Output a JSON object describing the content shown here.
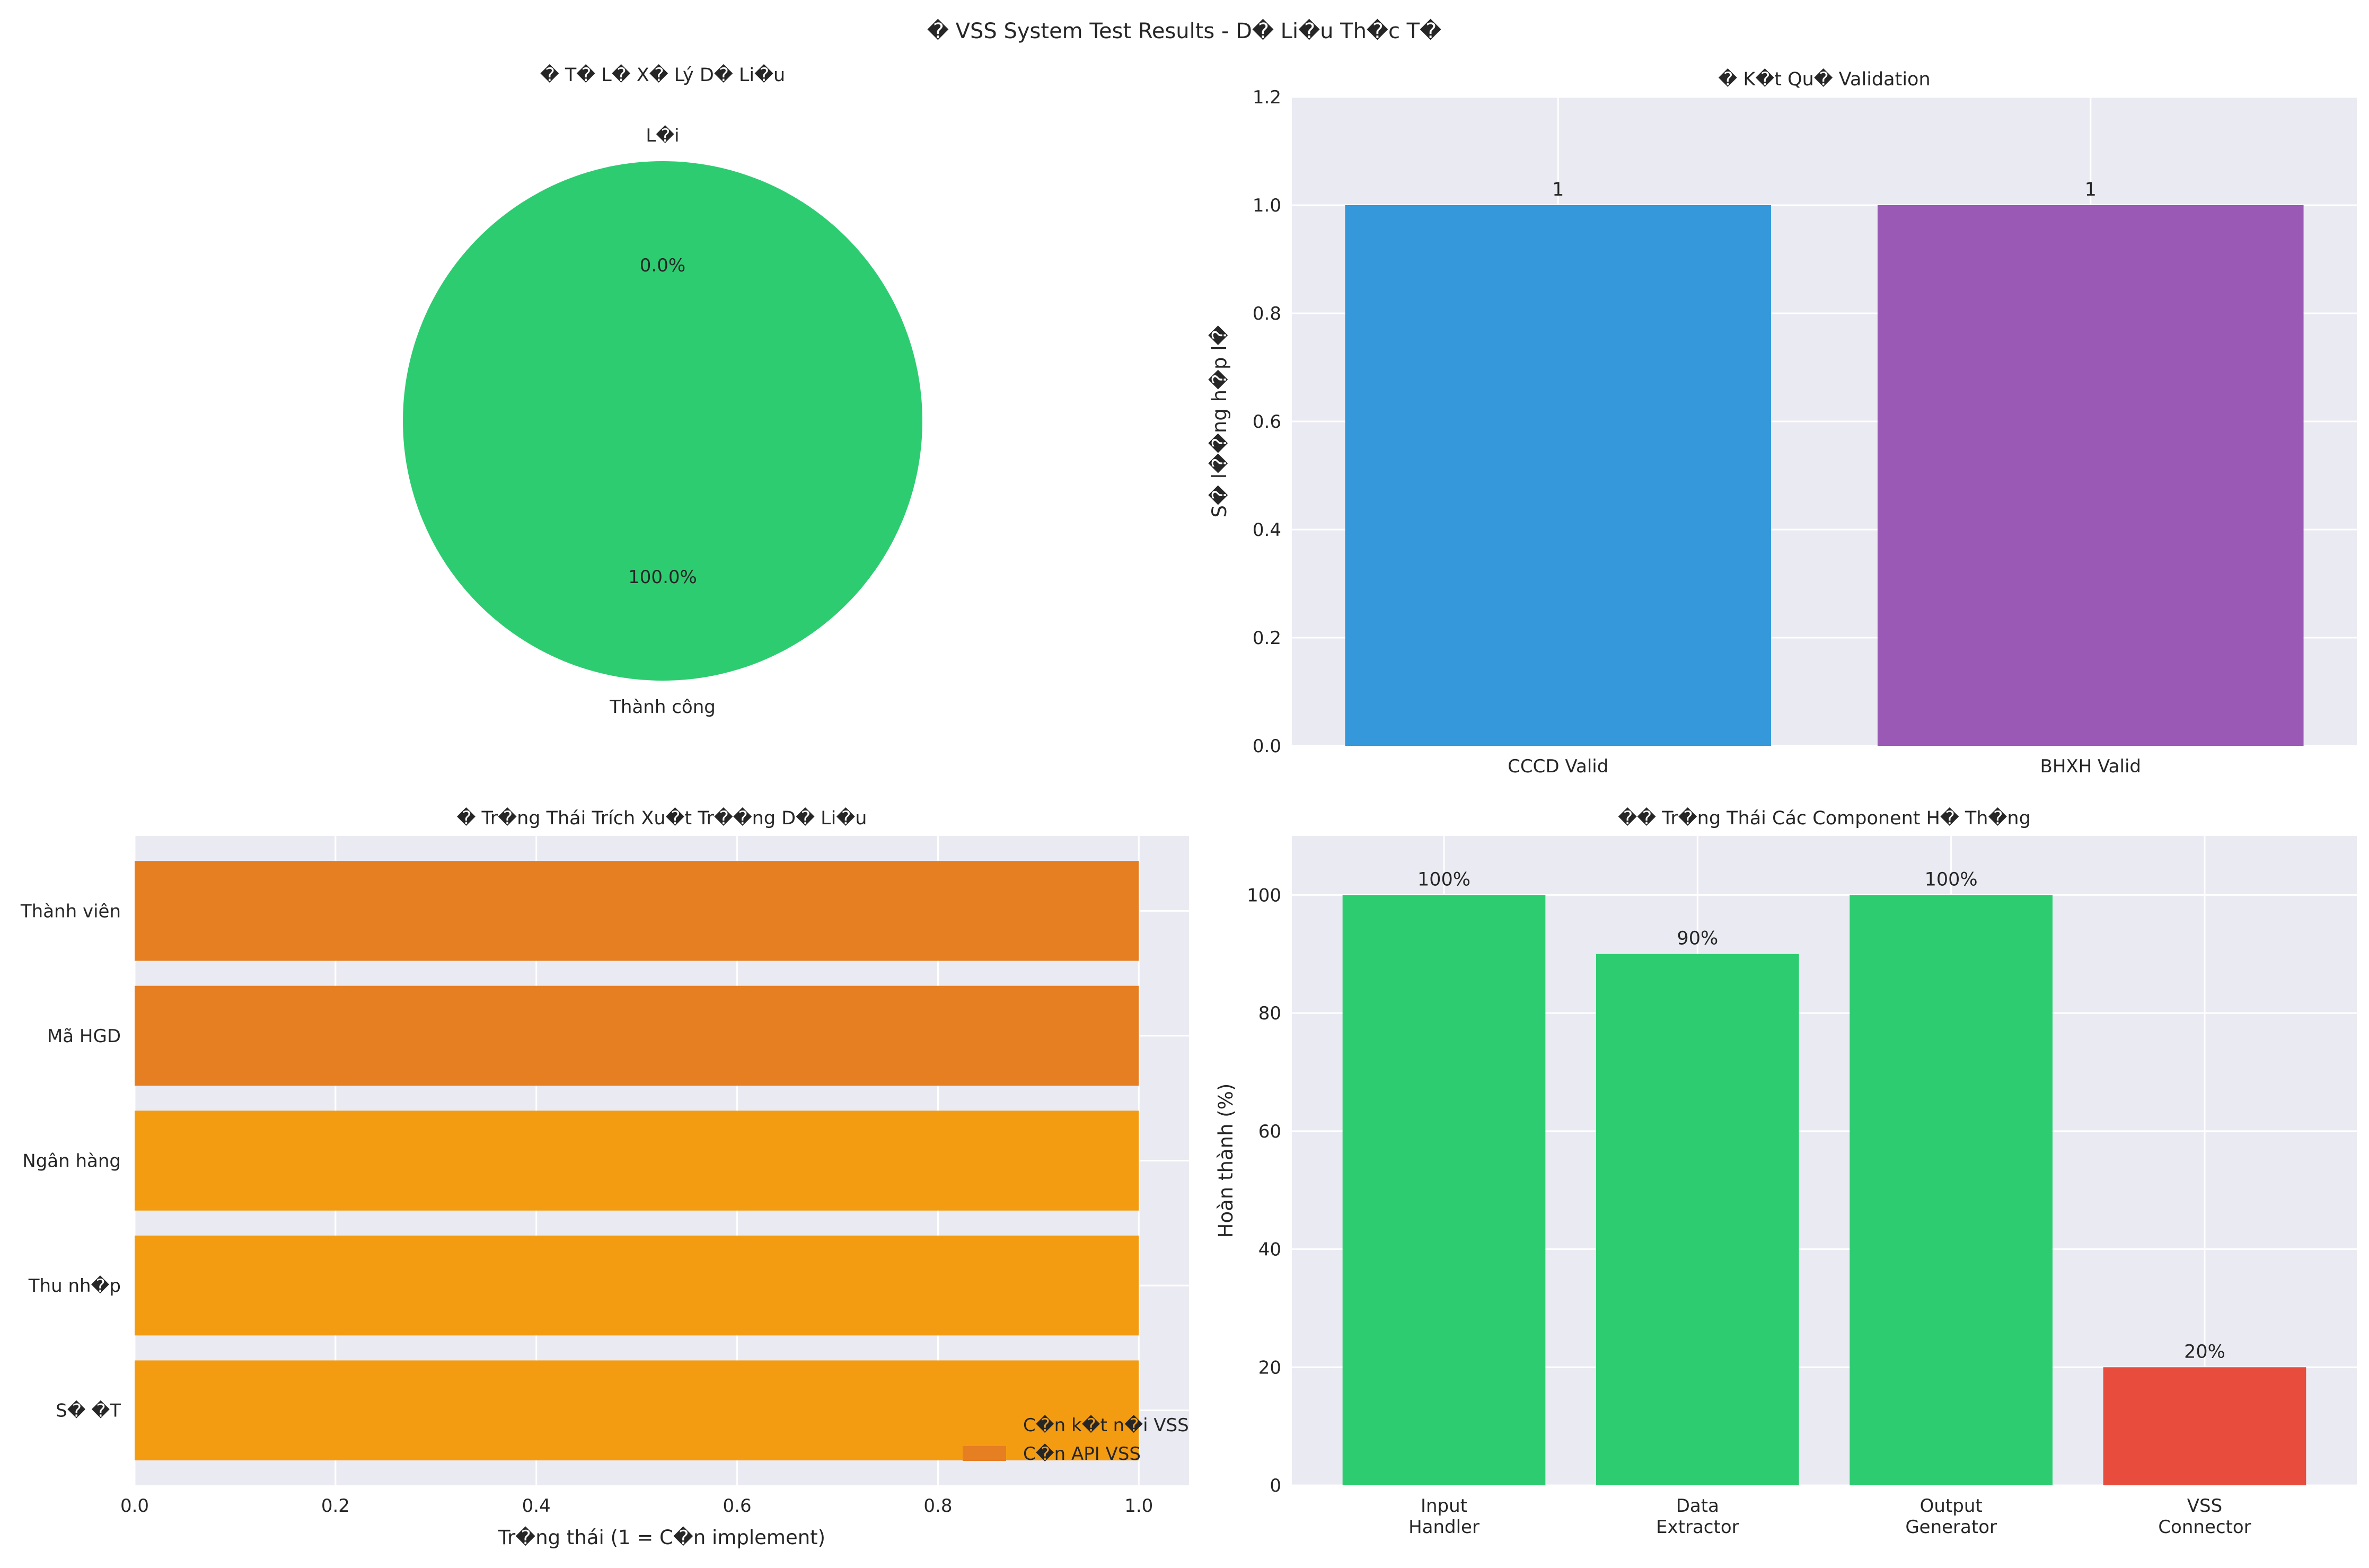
{
  "figure_title": "� VSS System Test Results - D� Li�u Th�c T�",
  "colors": {
    "panel_bg": "#eaeaf2",
    "grid": "#ffffff",
    "success_green": "#2ecc71",
    "blue": "#3498db",
    "purple": "#9b59b6",
    "dark_orange": "#e67e22",
    "orange": "#f39c12",
    "red": "#e74c3c"
  },
  "chart_data": [
    {
      "type": "pie",
      "title": "� T� L� X� Lý D� Li�u",
      "slices": [
        {
          "label": "Thành công",
          "value": 100.0,
          "pct_label": "100.0%",
          "color": "#2ecc71"
        },
        {
          "label": "L�i",
          "value": 0.0,
          "pct_label": "0.0%",
          "color": "#e74c3c"
        }
      ]
    },
    {
      "type": "bar",
      "title": "� K�t Qu� Validation",
      "categories": [
        "CCCD Valid",
        "BHXH Valid"
      ],
      "values": [
        1,
        1
      ],
      "value_labels": [
        "1",
        "1"
      ],
      "colors": [
        "#3498db",
        "#9b59b6"
      ],
      "xlabel": "",
      "ylabel": "S� l��ng h�p l�",
      "ylim": [
        0,
        1.2
      ],
      "yticks": [
        "0.0",
        "0.2",
        "0.4",
        "0.6",
        "0.8",
        "1.0",
        "1.2"
      ],
      "grid": true
    },
    {
      "type": "bar",
      "orientation": "horizontal",
      "title": "� Tr�ng Thái Trích Xu�t Tr��ng D� Li�u",
      "categories": [
        "Thành viên",
        "Mã HGD",
        "Ngân hàng",
        "Thu nh�p",
        "S� �T"
      ],
      "values": [
        1,
        1,
        1,
        1,
        1
      ],
      "colors": [
        "#e67e22",
        "#e67e22",
        "#f39c12",
        "#f39c12",
        "#f39c12"
      ],
      "xlabel": "Tr�ng thái (1 = C�n implement)",
      "ylabel": "",
      "xlim": [
        0,
        1.05
      ],
      "xticks": [
        "0.0",
        "0.2",
        "0.4",
        "0.6",
        "0.8",
        "1.0"
      ],
      "legend": {
        "placement": "lower-right",
        "entries": [
          {
            "label": "C�n k�t n�i VSS",
            "color": "#f39c12"
          },
          {
            "label": "C�n API VSS",
            "color": "#e67e22"
          }
        ]
      },
      "grid": true
    },
    {
      "type": "bar",
      "title": "�� Tr�ng Thái Các Component H� Th�ng",
      "categories": [
        [
          "Input",
          "Handler"
        ],
        [
          "Data",
          "Extractor"
        ],
        [
          "Output",
          "Generator"
        ],
        [
          "VSS",
          "Connector"
        ]
      ],
      "values": [
        100,
        90,
        100,
        20
      ],
      "value_labels": [
        "100%",
        "90%",
        "100%",
        "20%"
      ],
      "colors": [
        "#2ecc71",
        "#2ecc71",
        "#2ecc71",
        "#e74c3c"
      ],
      "xlabel": "",
      "ylabel": "Hoàn thành (%)",
      "ylim": [
        0,
        110
      ],
      "yticks": [
        "0",
        "20",
        "40",
        "60",
        "80",
        "100"
      ],
      "grid": true
    }
  ]
}
